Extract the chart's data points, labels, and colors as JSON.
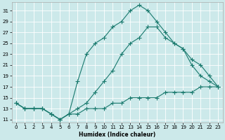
{
  "xlabel": "Humidex (Indice chaleur)",
  "bg_color": "#cce9ea",
  "grid_color": "#ffffff",
  "line_color": "#1a7a6e",
  "xlim": [
    -0.5,
    23.5
  ],
  "ylim": [
    10.5,
    32.5
  ],
  "xticks": [
    0,
    1,
    2,
    3,
    4,
    5,
    6,
    7,
    8,
    9,
    10,
    11,
    12,
    13,
    14,
    15,
    16,
    17,
    18,
    19,
    20,
    21,
    22,
    23
  ],
  "yticks": [
    11,
    13,
    15,
    17,
    19,
    21,
    23,
    25,
    27,
    29,
    31
  ],
  "series1_x": [
    0,
    1,
    2,
    3,
    4,
    5,
    6,
    7,
    8,
    9,
    10,
    11,
    12,
    13,
    14,
    15,
    16,
    17,
    18,
    19,
    20,
    21,
    22,
    23
  ],
  "series1_y": [
    14,
    13,
    13,
    13,
    12,
    11,
    12,
    18,
    23,
    25,
    26,
    28,
    29,
    31,
    32,
    31,
    29,
    27,
    25,
    24,
    21,
    19,
    18,
    17
  ],
  "series2_x": [
    0,
    1,
    2,
    3,
    4,
    5,
    6,
    7,
    8,
    9,
    10,
    11,
    12,
    13,
    14,
    15,
    16,
    17,
    18,
    19,
    20,
    21,
    22,
    23
  ],
  "series2_y": [
    14,
    13,
    13,
    13,
    12,
    11,
    12,
    13,
    14,
    16,
    18,
    20,
    23,
    25,
    26,
    28,
    28,
    26,
    25,
    24,
    22,
    21,
    19,
    17
  ],
  "series3_x": [
    0,
    1,
    2,
    3,
    4,
    5,
    6,
    7,
    8,
    9,
    10,
    11,
    12,
    13,
    14,
    15,
    16,
    17,
    18,
    19,
    20,
    21,
    22,
    23
  ],
  "series3_y": [
    14,
    13,
    13,
    13,
    12,
    11,
    12,
    12,
    13,
    13,
    13,
    14,
    14,
    15,
    15,
    15,
    15,
    16,
    16,
    16,
    16,
    17,
    17,
    17
  ]
}
